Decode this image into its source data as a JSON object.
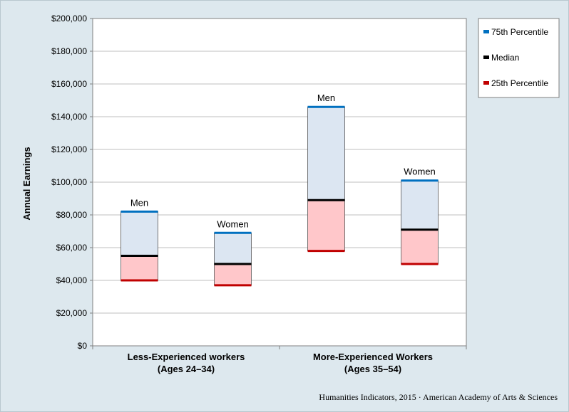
{
  "chart_data": {
    "type": "bar",
    "subtype": "floating-range",
    "ylabel": "Annual Earnings",
    "ylim": [
      0,
      200000
    ],
    "yticks": [
      "$0",
      "$20,000",
      "$40,000",
      "$60,000",
      "$80,000",
      "$100,000",
      "$120,000",
      "$140,000",
      "$160,000",
      "$180,000",
      "$200,000"
    ],
    "ytick_values": [
      0,
      20000,
      40000,
      60000,
      80000,
      100000,
      120000,
      140000,
      160000,
      180000,
      200000
    ],
    "groups": [
      {
        "line1": "Less-Experienced workers",
        "line2": "(Ages 24–34)"
      },
      {
        "line1": "More-Experienced Workers",
        "line2": "(Ages 35–54)"
      }
    ],
    "bars": [
      {
        "group": 0,
        "label": "Men",
        "p25": 40000,
        "median": 55000,
        "p75": 82000
      },
      {
        "group": 0,
        "label": "Women",
        "p25": 37000,
        "median": 50000,
        "p75": 69000
      },
      {
        "group": 1,
        "label": "Men",
        "p25": 58000,
        "median": 89000,
        "p75": 146000
      },
      {
        "group": 1,
        "label": "Women",
        "p25": 50000,
        "median": 71000,
        "p75": 101000
      }
    ],
    "legend": [
      {
        "key": "p75",
        "label": "75th Percentile",
        "color": "#0070c0"
      },
      {
        "key": "median",
        "label": "Median",
        "color": "#000000"
      },
      {
        "key": "p25",
        "label": "25th Percentile",
        "color": "#c00000"
      }
    ],
    "colors": {
      "upper_fill": "#dce6f2",
      "lower_fill": "#ffc7ca",
      "plot_bg": "#ffffff",
      "page_bg": "#dde8ee",
      "grid": "#bfbfbf"
    },
    "grid": true,
    "legend_position": "top-right"
  },
  "source_note": "Humanities  Indicators, 2015 · American Academy of Arts & Sciences"
}
